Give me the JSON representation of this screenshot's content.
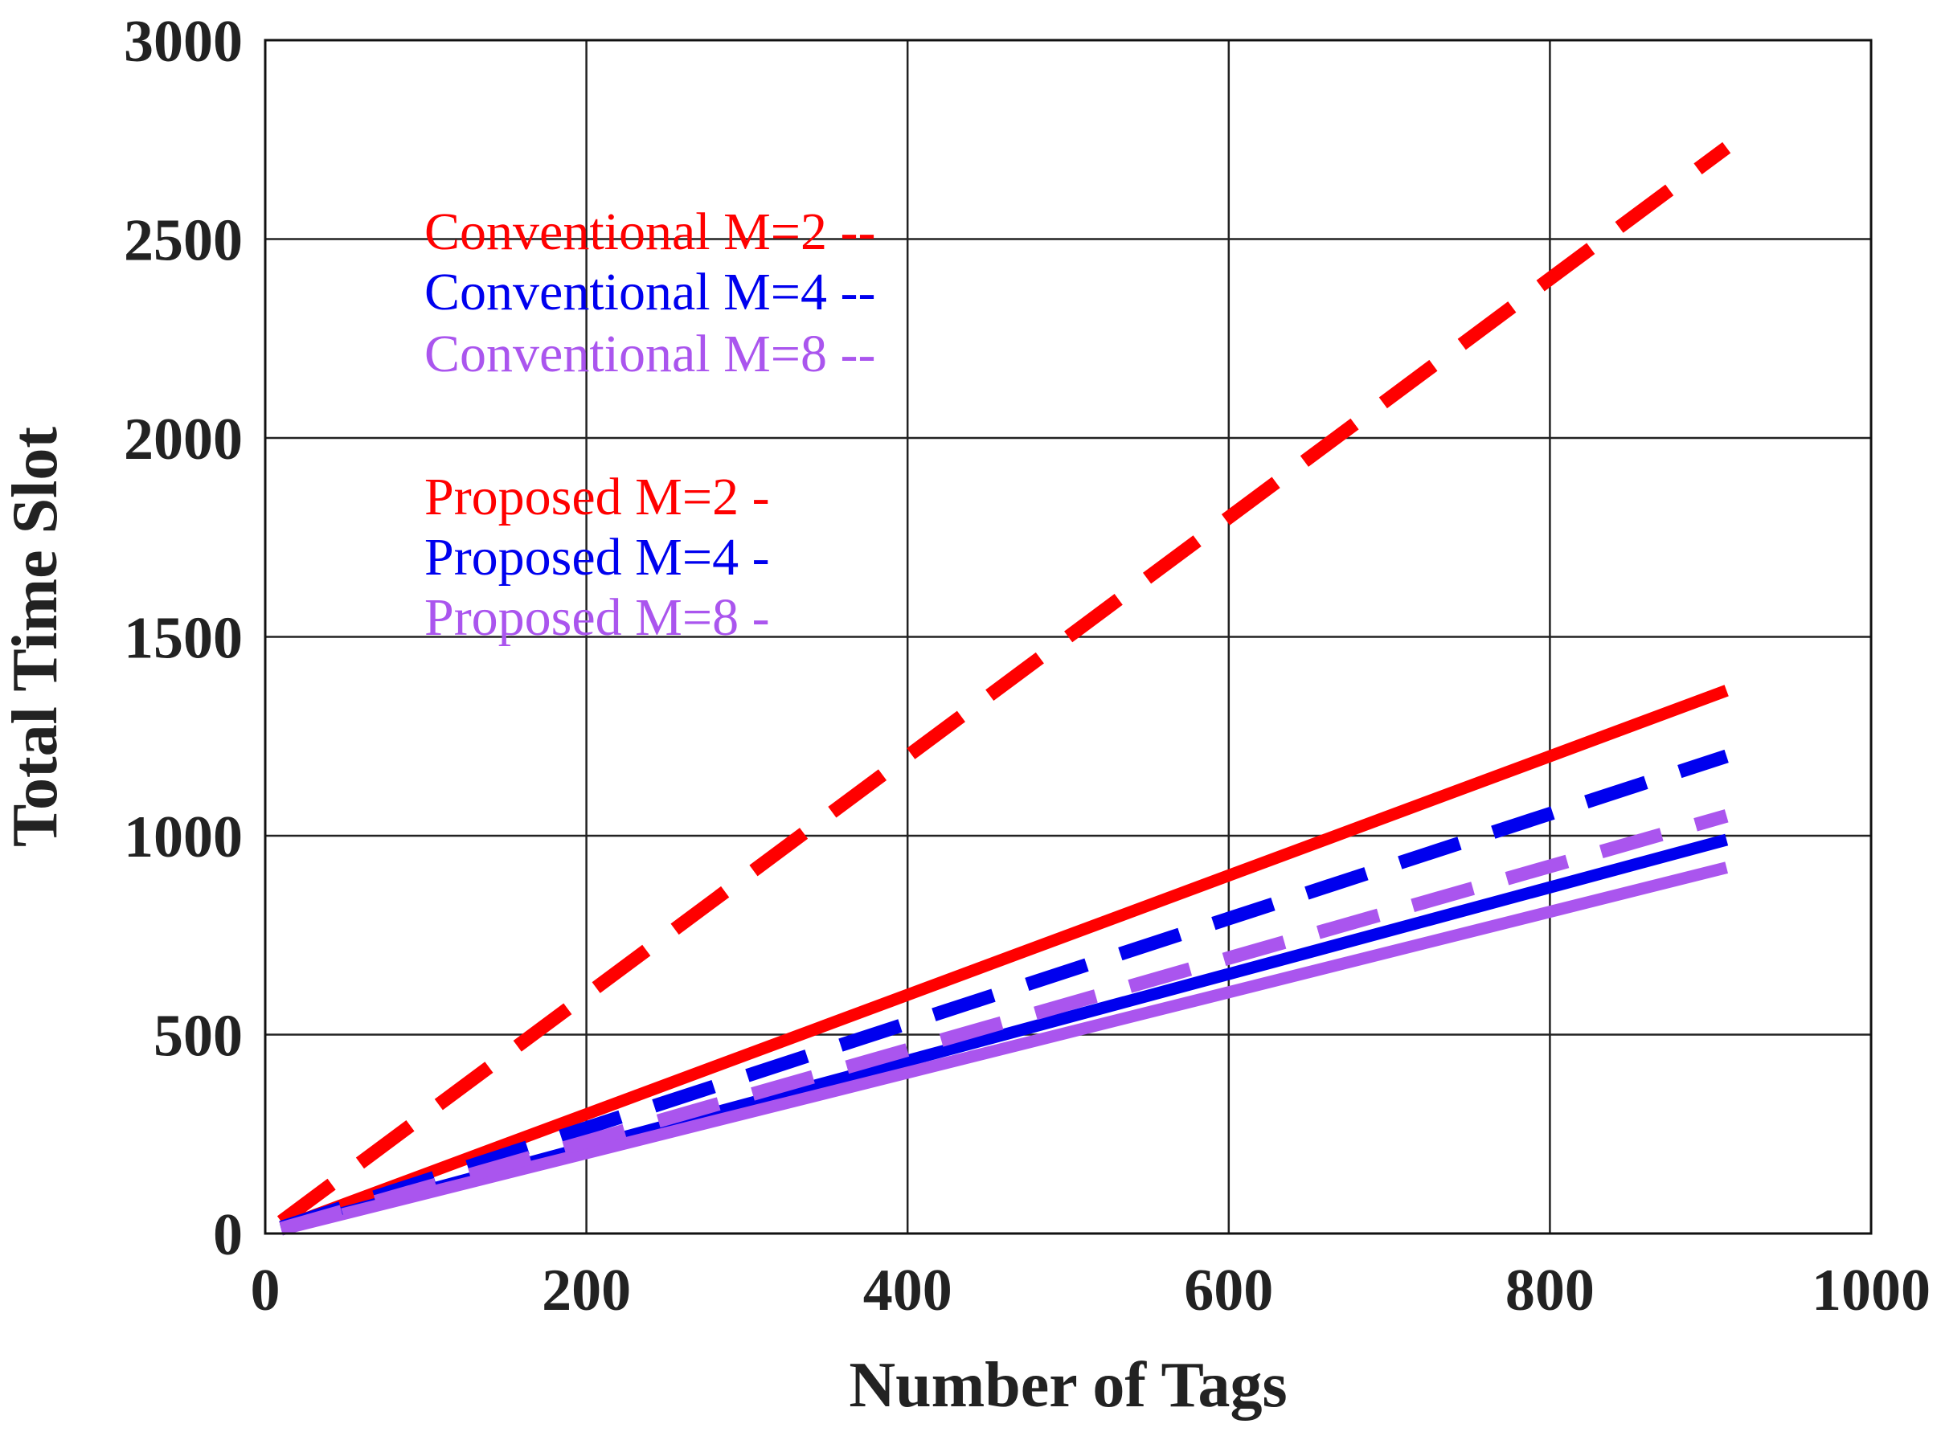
{
  "chart_data": {
    "type": "line",
    "title": "",
    "xlabel": "Number of Tags",
    "ylabel": "Total Time Slot",
    "xlim": [
      0,
      1000
    ],
    "ylim": [
      0,
      3000
    ],
    "xticks": [
      "0",
      "200",
      "400",
      "600",
      "800",
      "1000"
    ],
    "yticks": [
      "0",
      "500",
      "1000",
      "1500",
      "2000",
      "2500",
      "3000"
    ],
    "grid": true,
    "legend_position": "upper-left inside plot",
    "series": [
      {
        "name": "Conventional M=2",
        "legend_label": "Conventional M=2 --",
        "style": "dashed",
        "color": "#ff0000",
        "x": [
          10,
          910
        ],
        "y": [
          30,
          2730
        ]
      },
      {
        "name": "Conventional M=4",
        "legend_label": "Conventional M=4 --",
        "style": "dashed",
        "color": "#0000ee",
        "x": [
          10,
          910
        ],
        "y": [
          15,
          1200
        ]
      },
      {
        "name": "Conventional M=8",
        "legend_label": "Conventional M=8 --",
        "style": "dashed",
        "color": "#aa55ee",
        "x": [
          10,
          910
        ],
        "y": [
          12,
          1050
        ]
      },
      {
        "name": "Proposed M=2",
        "legend_label": "Proposed M=2 -",
        "style": "solid",
        "color": "#ff0000",
        "x": [
          10,
          910
        ],
        "y": [
          15,
          1365
        ]
      },
      {
        "name": "Proposed M=4",
        "legend_label": "Proposed M=4 -",
        "style": "solid",
        "color": "#0000ee",
        "x": [
          10,
          910
        ],
        "y": [
          10,
          990
        ]
      },
      {
        "name": "Proposed M=8",
        "legend_label": "Proposed M=8 -",
        "style": "solid",
        "color": "#aa55ee",
        "x": [
          10,
          910
        ],
        "y": [
          10,
          920
        ]
      }
    ]
  }
}
